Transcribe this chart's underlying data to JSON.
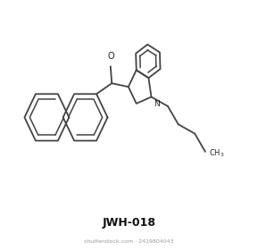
{
  "title": "JWH-018",
  "title_fontsize": 9,
  "bg_color": "#ffffff",
  "line_color": "#444444",
  "line_width": 1.3,
  "text_color": "#222222",
  "shutterstock_text": "shutterstock.com · 2419804043",
  "shutterstock_fontsize": 4.5,
  "ch3_label": "CH$_3$"
}
